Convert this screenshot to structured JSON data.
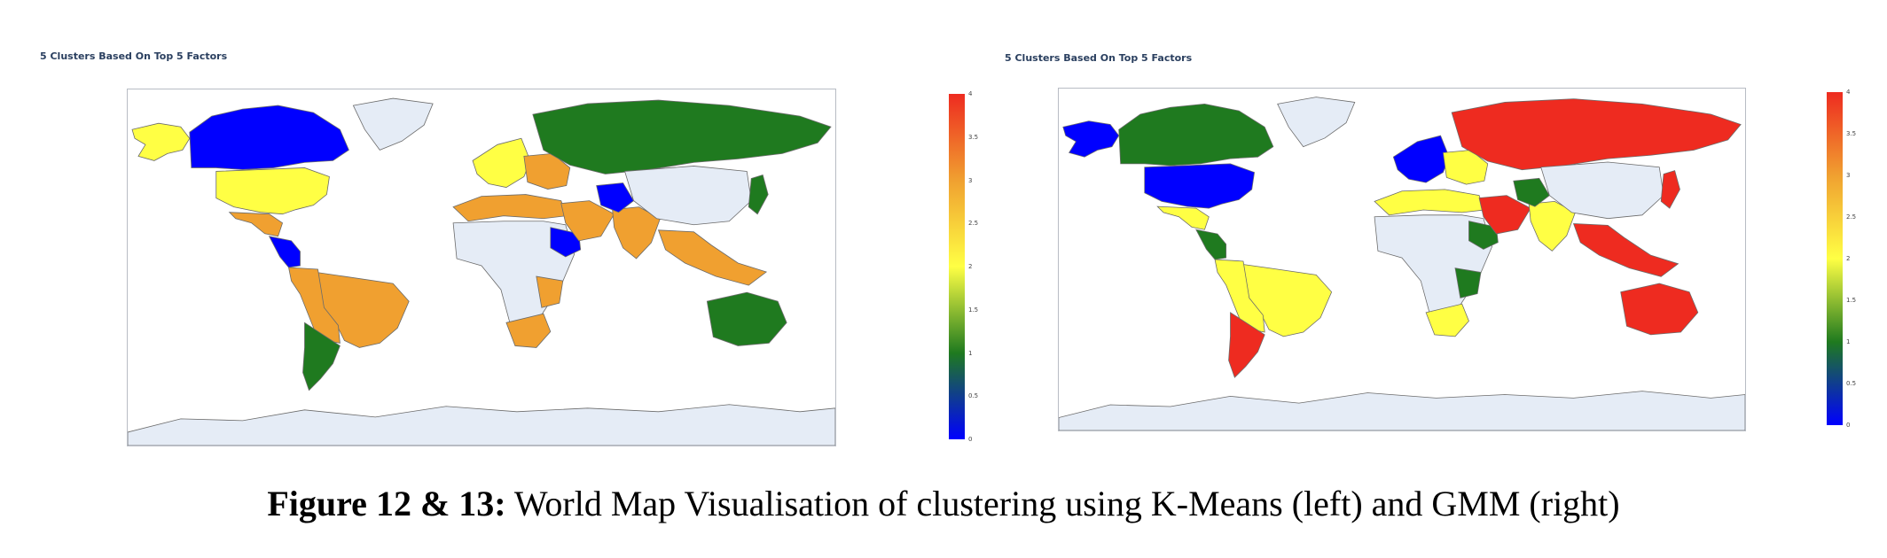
{
  "colorscale": [
    "#0000ff",
    "#1f7a1f",
    "#ffff44",
    "#f0a030",
    "#ee2b20"
  ],
  "land_unassigned": "#e5ecf6",
  "colorbar_ticks": [
    "0",
    "0.5",
    "1",
    "1.5",
    "2",
    "2.5",
    "3",
    "3.5",
    "4"
  ],
  "caption": {
    "label": "Figure 12 & 13:",
    "text": "World Map Visualisation of clustering using K-Means (left) and GMM (right)"
  },
  "maps": [
    {
      "title": "5 Clusters Based On Top 5 Factors",
      "method": "K-Means",
      "regions": {
        "alaska": 2,
        "canada": 0,
        "usa": 2,
        "mexico": 3,
        "central_america": 0,
        "brazil": 3,
        "south_america_west": 3,
        "argentina": 1,
        "greenland": -1,
        "western_europe": 2,
        "eastern_europe": 3,
        "russia": 1,
        "north_africa": 3,
        "sahara_africa": -1,
        "horn_africa": 0,
        "east_africa": 3,
        "southern_africa": 3,
        "arabia": 3,
        "india": 3,
        "pakistan": 0,
        "china": -1,
        "se_asia": 3,
        "australia": 1,
        "japan": 1,
        "antarctica": -1
      }
    },
    {
      "title": "5 Clusters Based On Top 5 Factors",
      "method": "GMM",
      "regions": {
        "alaska": 0,
        "canada": 1,
        "usa": 0,
        "mexico": 2,
        "central_america": 1,
        "brazil": 2,
        "south_america_west": 2,
        "argentina": 4,
        "greenland": -1,
        "western_europe": 0,
        "eastern_europe": 2,
        "russia": 4,
        "north_africa": 2,
        "sahara_africa": -1,
        "horn_africa": 1,
        "east_africa": 1,
        "southern_africa": 2,
        "arabia": 4,
        "india": 2,
        "pakistan": 1,
        "china": -1,
        "se_asia": 4,
        "australia": 4,
        "japan": 4,
        "antarctica": -1
      }
    }
  ]
}
